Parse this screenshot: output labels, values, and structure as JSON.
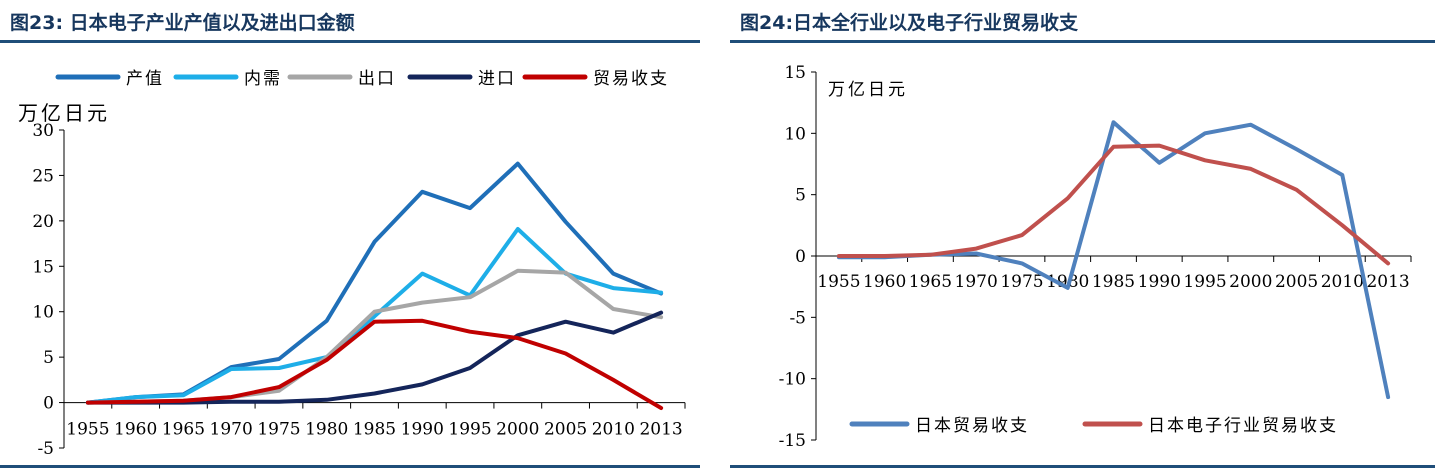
{
  "left": {
    "title": "图23: 日本电子产业产值以及进出口金额",
    "colors": {
      "产值": "#1F6FB8",
      "内需": "#1EAEE8",
      "出口": "#A6A6A6",
      "进口": "#14255A",
      "贸易收支": "#C00000"
    }
  },
  "right": {
    "title": "图24:日本全行业以及电子行业贸易收支",
    "colors": {
      "日本贸易收支": "#4F81BD",
      "日本电子行业贸易收支": "#C0504D"
    }
  },
  "chart_data": [
    {
      "type": "line",
      "title": "图23: 日本电子产业产值以及进出口金额",
      "ylabel": "万亿日元",
      "xlabel": "",
      "x": [
        "1955",
        "1960",
        "1965",
        "1970",
        "1975",
        "1980",
        "1985",
        "1990",
        "1995",
        "2000",
        "2005",
        "2010",
        "2013"
      ],
      "ylim": [
        -5,
        30
      ],
      "yticks": [
        -5,
        0,
        5,
        10,
        15,
        20,
        25,
        30
      ],
      "grid": false,
      "legend": "top",
      "series": [
        {
          "name": "产值",
          "values": [
            0,
            0.6,
            0.9,
            3.9,
            4.8,
            9.0,
            17.7,
            23.2,
            21.4,
            26.3,
            19.9,
            14.2,
            12.0
          ]
        },
        {
          "name": "内需",
          "values": [
            0,
            0.6,
            0.8,
            3.7,
            3.8,
            5.0,
            9.5,
            14.2,
            11.8,
            19.1,
            14.2,
            12.6,
            12.1
          ]
        },
        {
          "name": "出口",
          "values": [
            0,
            0.1,
            0.2,
            0.6,
            1.3,
            5.0,
            10.0,
            11.0,
            11.6,
            14.5,
            14.3,
            10.3,
            9.4
          ]
        },
        {
          "name": "进口",
          "values": [
            0,
            0,
            0,
            0.1,
            0.1,
            0.3,
            1.0,
            2.0,
            3.8,
            7.4,
            8.9,
            7.7,
            9.9
          ]
        },
        {
          "name": "贸易收支",
          "values": [
            0,
            0.1,
            0.2,
            0.6,
            1.7,
            4.7,
            8.9,
            9.0,
            7.8,
            7.1,
            5.4,
            2.5,
            -0.6
          ]
        }
      ]
    },
    {
      "type": "line",
      "title": "图24:日本全行业以及电子行业贸易收支",
      "ylabel": "万亿日元",
      "xlabel": "",
      "x": [
        "1955",
        "1960",
        "1965",
        "1970",
        "1975",
        "1980",
        "1985",
        "1990",
        "1995",
        "2000",
        "2005",
        "2010",
        "2013"
      ],
      "ylim": [
        -15,
        15
      ],
      "yticks": [
        -15,
        -10,
        -5,
        0,
        5,
        10,
        15
      ],
      "grid": false,
      "legend": "bottom",
      "series": [
        {
          "name": "日本贸易收支",
          "values": [
            -0.1,
            -0.1,
            0.1,
            0.2,
            -0.6,
            -2.6,
            10.9,
            7.6,
            10.0,
            10.7,
            8.7,
            6.6,
            -11.5
          ]
        },
        {
          "name": "日本电子行业贸易收支",
          "values": [
            0,
            0,
            0.1,
            0.6,
            1.7,
            4.7,
            8.9,
            9.0,
            7.8,
            7.1,
            5.4,
            2.5,
            -0.6
          ]
        }
      ]
    }
  ]
}
